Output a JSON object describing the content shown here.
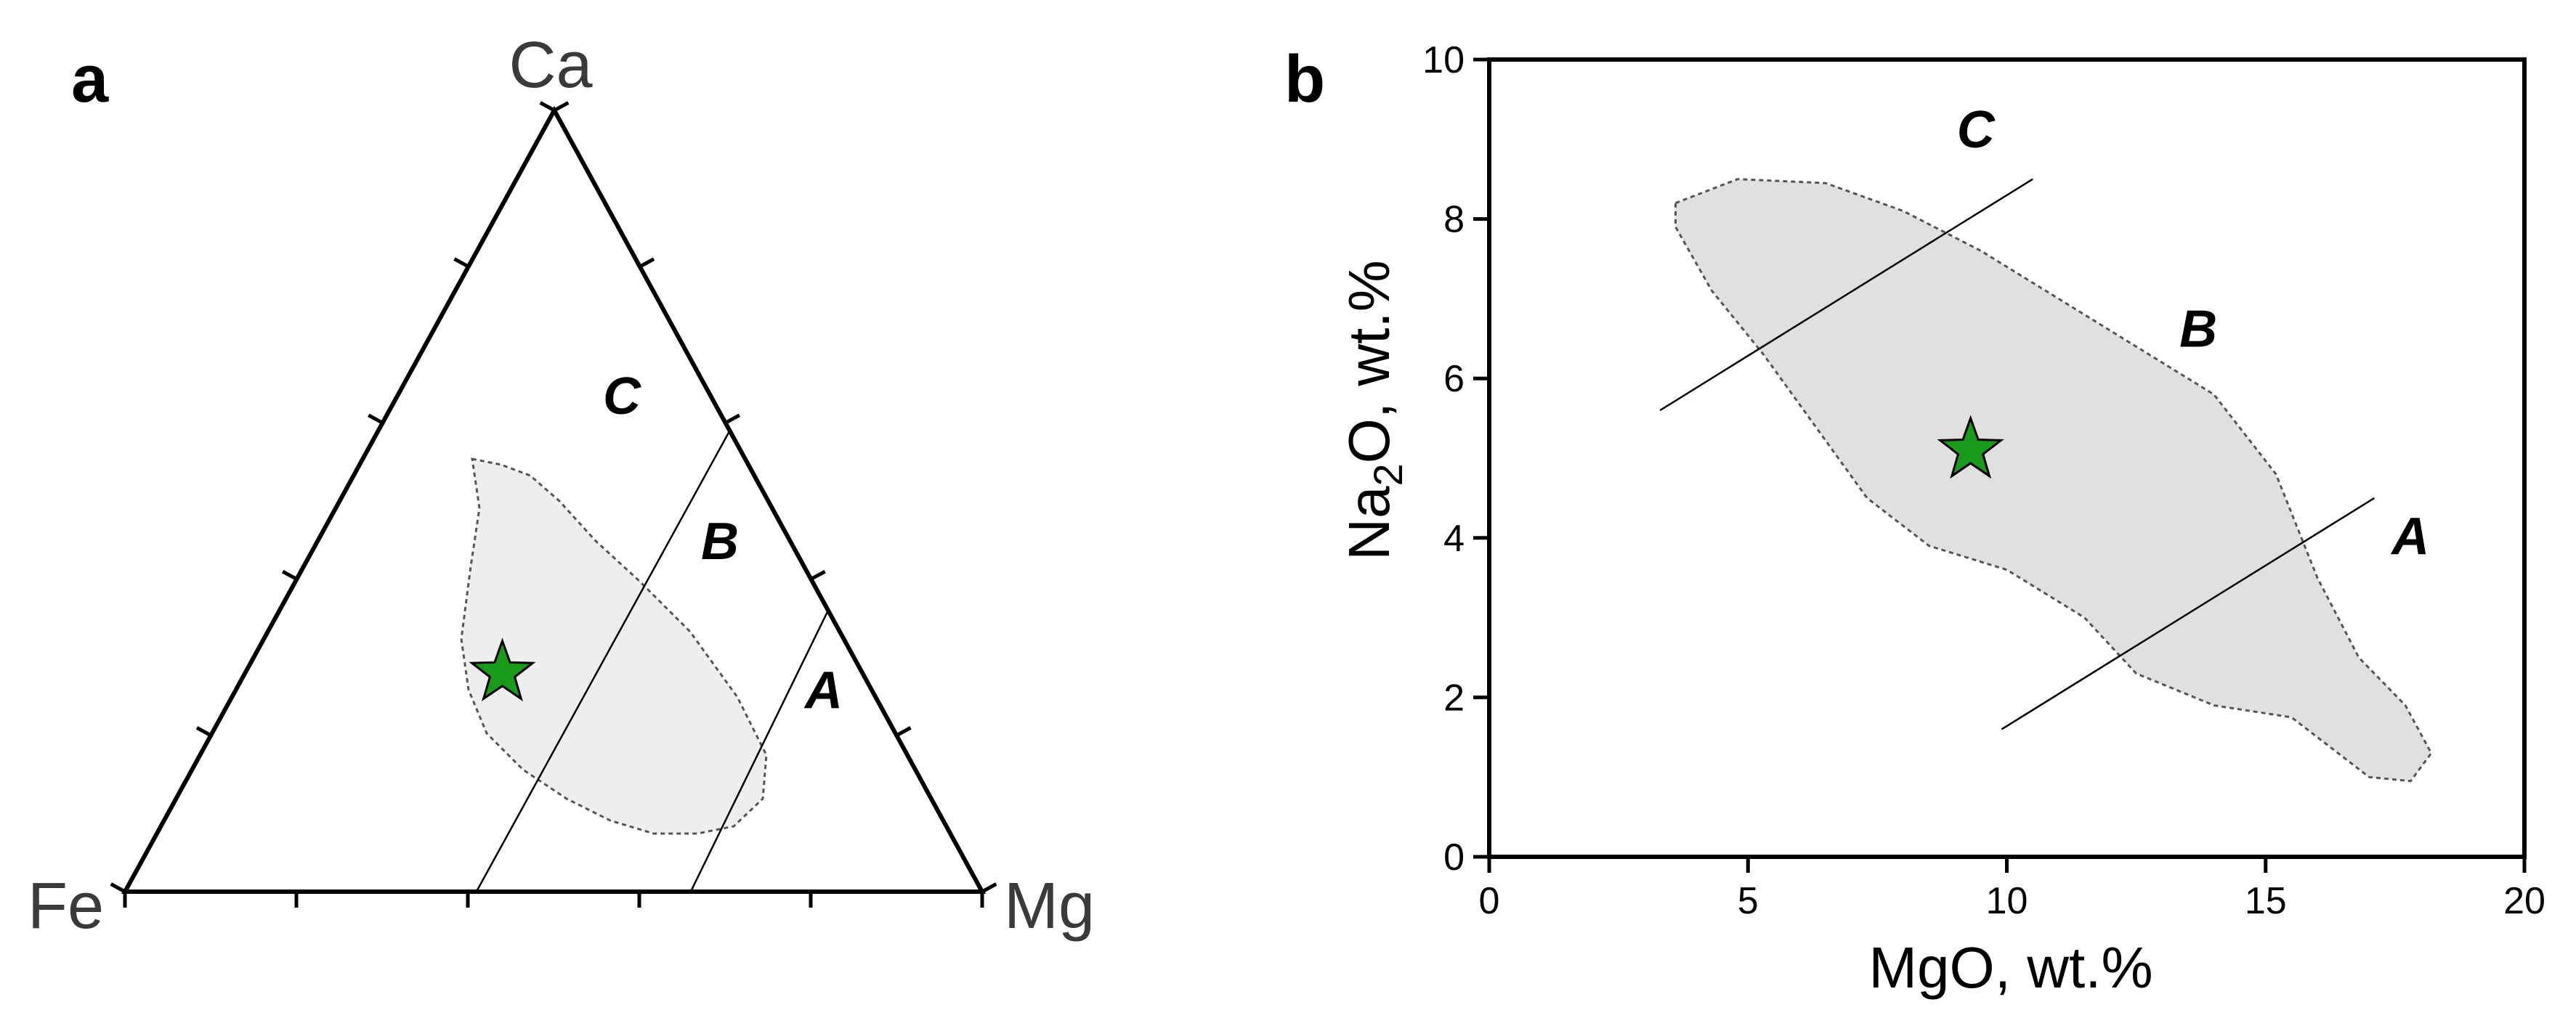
{
  "colors": {
    "field_fill_a": "#eeeeee",
    "field_fill_b": "#e0e0e0",
    "field_outline": "#555555",
    "star": "#1a9a1a",
    "line": "#000000"
  },
  "chart_data": [
    {
      "panel_label": "a",
      "type": "ternary",
      "vertices": {
        "top": "Ca",
        "left": "Fe",
        "right": "Mg"
      },
      "ticks_per_edge": 4,
      "region_labels": [
        "C",
        "B",
        "A"
      ],
      "boundary_lines": [
        {
          "from": {
            "Ca": 0.0,
            "Fe": 0.59,
            "Mg": 0.41
          },
          "to": {
            "Ca": 0.59,
            "Fe": 0.0,
            "Mg": 0.41
          }
        },
        {
          "from": {
            "Ca": 0.0,
            "Fe": 0.34,
            "Mg": 0.66
          },
          "to": {
            "Ca": 0.36,
            "Fe": 0.0,
            "Mg": 0.64
          }
        }
      ],
      "star": {
        "Ca": 0.28,
        "Fe": 0.42,
        "Mg": 0.3
      },
      "shaded_field": true
    },
    {
      "panel_label": "b",
      "type": "scatter",
      "xlabel": "MgO, wt.%",
      "ylabel_parts": [
        "Na",
        "2",
        "O, wt.%"
      ],
      "xlim": [
        0,
        20
      ],
      "ylim": [
        0,
        10
      ],
      "x_ticks": [
        0,
        5,
        10,
        15,
        20
      ],
      "y_ticks": [
        0,
        2,
        4,
        6,
        8,
        10
      ],
      "region_labels": [
        {
          "text": "C",
          "x": 9.4,
          "y": 8.9
        },
        {
          "text": "B",
          "x": 13.7,
          "y": 6.4
        },
        {
          "text": "A",
          "x": 17.8,
          "y": 3.8
        }
      ],
      "boundary_lines": [
        {
          "x": [
            3.3,
            10.5
          ],
          "y": [
            5.6,
            8.5
          ]
        },
        {
          "x": [
            9.9,
            17.1
          ],
          "y": [
            1.6,
            4.5
          ]
        }
      ],
      "star": {
        "x": 9.3,
        "y": 5.1
      },
      "field_outline": [
        [
          3.6,
          8.2
        ],
        [
          4.8,
          8.5
        ],
        [
          6.5,
          8.45
        ],
        [
          8.0,
          8.1
        ],
        [
          9.5,
          7.6
        ],
        [
          11.0,
          7.0
        ],
        [
          12.5,
          6.4
        ],
        [
          14.0,
          5.8
        ],
        [
          15.2,
          4.8
        ],
        [
          16.0,
          3.5
        ],
        [
          16.8,
          2.5
        ],
        [
          17.7,
          1.9
        ],
        [
          18.2,
          1.3
        ],
        [
          17.8,
          0.95
        ],
        [
          17.0,
          1.0
        ],
        [
          16.2,
          1.4
        ],
        [
          15.5,
          1.75
        ],
        [
          14.0,
          1.9
        ],
        [
          12.5,
          2.3
        ],
        [
          11.5,
          3.0
        ],
        [
          10.0,
          3.6
        ],
        [
          8.5,
          3.9
        ],
        [
          7.3,
          4.5
        ],
        [
          6.3,
          5.4
        ],
        [
          5.3,
          6.3
        ],
        [
          4.3,
          7.1
        ],
        [
          3.6,
          7.9
        ]
      ]
    }
  ]
}
